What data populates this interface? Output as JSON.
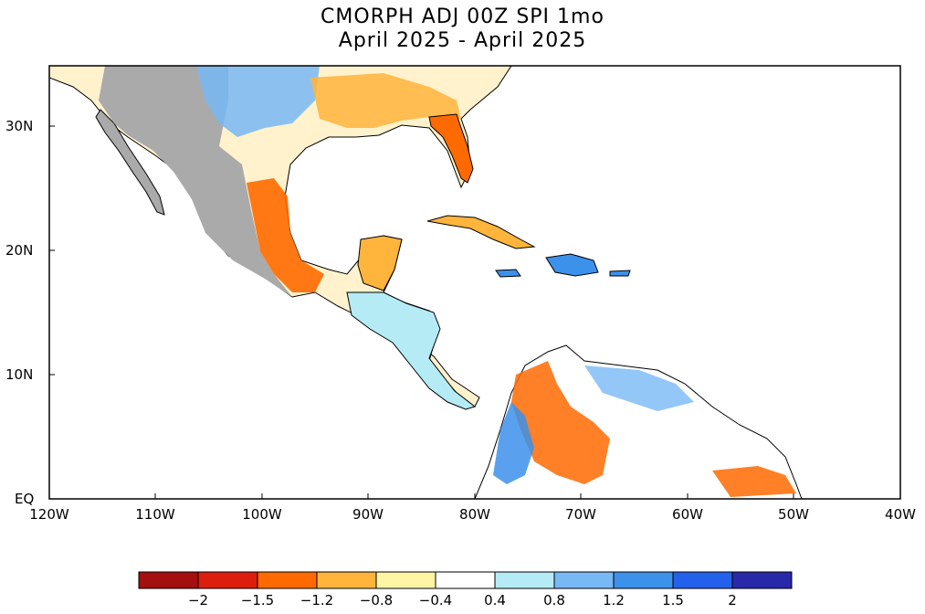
{
  "title": {
    "line1": "CMORPH ADJ 00Z SPI 1mo",
    "line2": "April 2025 - April 2025"
  },
  "map": {
    "lat_labels": [
      "30N",
      "20N",
      "10N",
      "EQ"
    ],
    "lon_labels": [
      "120W",
      "110W",
      "100W",
      "90W",
      "80W",
      "70W",
      "60W",
      "50W",
      "40W"
    ],
    "no_data_color": "#aaaaaa",
    "ocean_color": "#ffffff"
  },
  "colorbar": {
    "labels": [
      "-2",
      "-1.5",
      "-1.2",
      "-0.8",
      "-0.4",
      "0.4",
      "0.8",
      "1.2",
      "1.5",
      "2"
    ],
    "colors": [
      "#a50f0f",
      "#dc1e0f",
      "#ff6a00",
      "#ffb43c",
      "#fff5a5",
      "#ffffff",
      "#b4ebf5",
      "#78b9f5",
      "#3c91eb",
      "#2360eb",
      "#2828a8"
    ]
  }
}
